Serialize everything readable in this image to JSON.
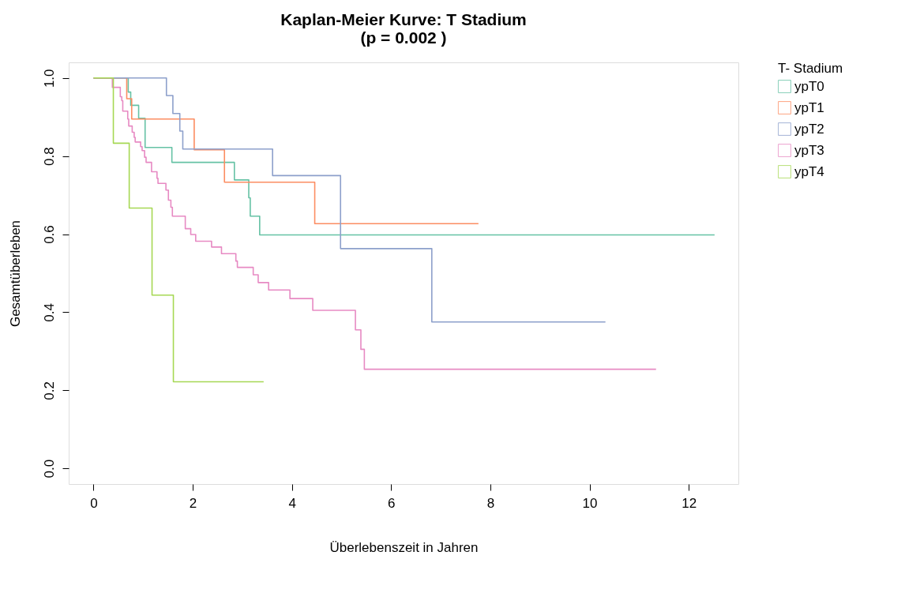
{
  "chart_data": {
    "type": "step",
    "title": [
      "Kaplan-Meier Kurve: T Stadium",
      "(p = 0.002 )"
    ],
    "xlabel": "Überlebenszeit in Jahren",
    "ylabel": "Gesamtüberleben",
    "legend_title": "T- Stadium",
    "legend": "right",
    "grid": false,
    "marker": "none",
    "line_style": "solid",
    "xlim": [
      -0.5,
      13.0
    ],
    "xticks": [
      0,
      2,
      4,
      6,
      8,
      10,
      12
    ],
    "ylim": [
      -0.04,
      1.04
    ],
    "yticks": [
      {
        "value": 0,
        "label": "0.0"
      },
      {
        "value": 0.2,
        "label": "0.2"
      },
      {
        "value": 0.4,
        "label": "0.4"
      },
      {
        "value": 0.6,
        "label": "0.6"
      },
      {
        "value": 0.8,
        "label": "0.8"
      },
      {
        "value": 1,
        "label": "1.0"
      }
    ],
    "series": [
      {
        "name": "ypT0",
        "color": "#66c2a5",
        "x": [
          0,
          0.7,
          0.75,
          0.91,
          1.04,
          1.58,
          2.84,
          3.13,
          3.16,
          3.35,
          12.52
        ],
        "values": [
          1.0,
          0.964,
          0.93,
          0.897,
          0.822,
          0.784,
          0.739,
          0.693,
          0.646,
          0.598,
          0.598
        ]
      },
      {
        "name": "ypT1",
        "color": "#fc8d62",
        "x": [
          0,
          0.67,
          0.77,
          2.03,
          2.64,
          4.46,
          7.76
        ],
        "values": [
          1.0,
          0.947,
          0.895,
          0.816,
          0.733,
          0.627,
          0.627
        ]
      },
      {
        "name": "ypT2",
        "color": "#8da0cb",
        "x": [
          0,
          1.47,
          1.6,
          1.74,
          1.8,
          3.61,
          4.98,
          6.82,
          10.32
        ],
        "values": [
          1.0,
          0.955,
          0.909,
          0.864,
          0.818,
          0.75,
          0.563,
          0.375,
          0.375
        ]
      },
      {
        "name": "ypT3",
        "color": "#e78ac3",
        "x": [
          0,
          0.38,
          0.54,
          0.57,
          0.59,
          0.69,
          0.71,
          0.78,
          0.82,
          0.84,
          0.95,
          0.98,
          1.03,
          1.06,
          1.17,
          1.28,
          1.3,
          1.46,
          1.51,
          1.56,
          1.59,
          1.85,
          1.96,
          2.06,
          2.38,
          2.58,
          2.87,
          2.9,
          3.22,
          3.32,
          3.53,
          3.96,
          4.42,
          5.28,
          5.39,
          5.46,
          11.34
        ],
        "values": [
          1.0,
          0.976,
          0.952,
          0.942,
          0.915,
          0.895,
          0.877,
          0.861,
          0.848,
          0.836,
          0.824,
          0.814,
          0.797,
          0.784,
          0.76,
          0.743,
          0.73,
          0.713,
          0.687,
          0.669,
          0.646,
          0.614,
          0.599,
          0.582,
          0.567,
          0.55,
          0.531,
          0.515,
          0.496,
          0.476,
          0.457,
          0.435,
          0.405,
          0.355,
          0.305,
          0.254,
          0.254
        ]
      },
      {
        "name": "ypT4",
        "color": "#a6d854",
        "x": [
          0,
          0.4,
          0.72,
          1.18,
          1.61,
          3.43
        ],
        "values": [
          1.0,
          0.833,
          0.667,
          0.444,
          0.222,
          0.222
        ]
      }
    ]
  }
}
